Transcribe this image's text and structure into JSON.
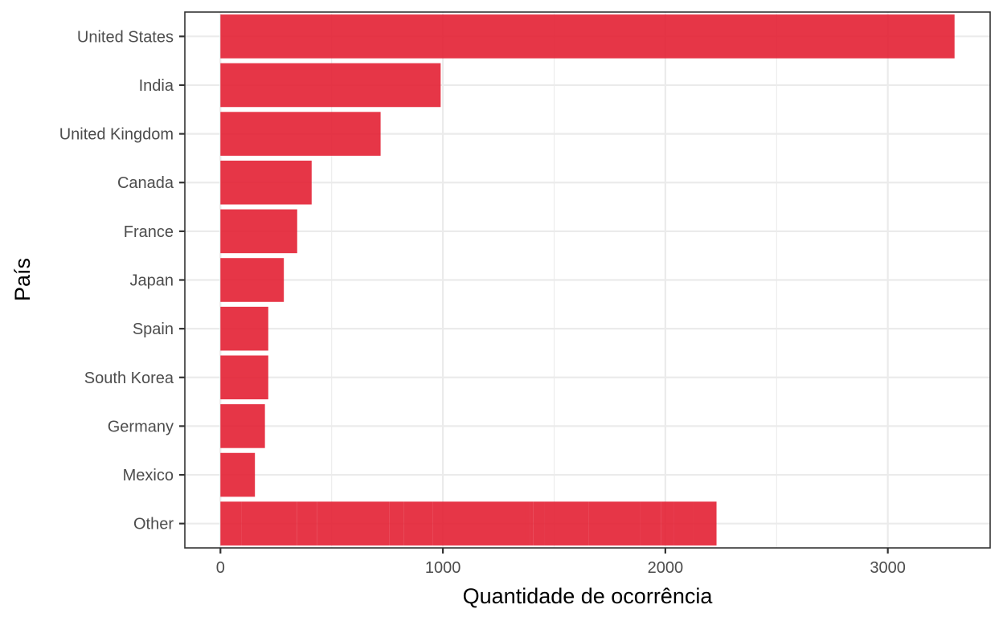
{
  "chart_data": {
    "type": "bar",
    "orientation": "horizontal",
    "categories": [
      "United States",
      "India",
      "United Kingdom",
      "Canada",
      "France",
      "Japan",
      "Spain",
      "South Korea",
      "Germany",
      "Mexico",
      "Other"
    ],
    "values": [
      3300,
      990,
      720,
      410,
      345,
      285,
      215,
      215,
      200,
      155,
      2230
    ],
    "xlabel": "Quantidade de ocorrência",
    "ylabel": "País",
    "xlim": [
      -160,
      3460
    ],
    "xticks": [
      0,
      1000,
      2000,
      3000
    ],
    "grid": true,
    "bar_color": "#e31a2e",
    "other_segments": [
      95,
      250,
      90,
      325,
      65,
      130,
      415,
      20,
      15,
      50,
      200,
      230,
      95,
      60,
      85,
      105
    ]
  }
}
